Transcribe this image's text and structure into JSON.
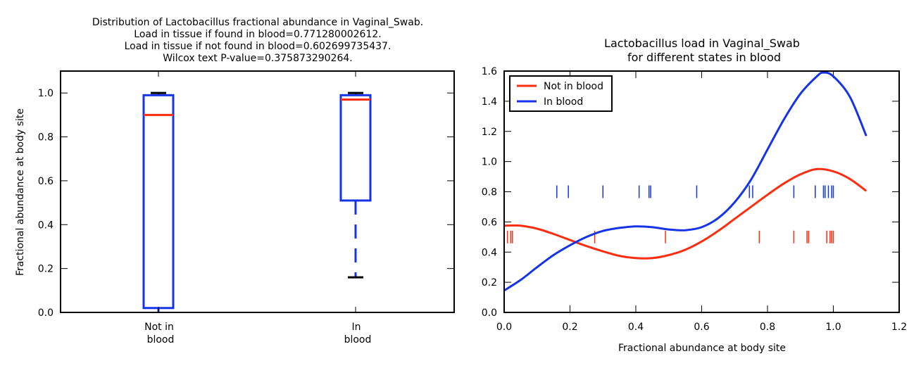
{
  "chart_data": [
    {
      "type": "box",
      "title_lines": [
        "Distribution of Lactobacillus fractional abundance in Vaginal_Swab.",
        "Load in tissue if found in blood=0.771280002612.",
        "Load in tissue if not found in blood=0.602699735437.",
        "Wilcox text P-value=0.375873290264."
      ],
      "ylabel": "Fractional abundance at body site",
      "ylim": [
        0,
        1.1
      ],
      "yticks": [
        {
          "v": 0,
          "label": "0.0"
        },
        {
          "v": 0.2,
          "label": "0.2"
        },
        {
          "v": 0.4,
          "label": "0.4"
        },
        {
          "v": 0.6,
          "label": "0.6"
        },
        {
          "v": 0.8,
          "label": "0.8"
        },
        {
          "v": 1.0,
          "label": "1.0"
        }
      ],
      "boxes": [
        {
          "label_lines": [
            "Not in",
            "blood"
          ],
          "whisker_low": 0.0,
          "q1": 0.02,
          "median": 0.9,
          "q3": 0.99,
          "whisker_high": 1.0,
          "cap_low": null,
          "cap_high": 1.0
        },
        {
          "label_lines": [
            "In",
            "blood"
          ],
          "whisker_low": 0.16,
          "q1": 0.51,
          "median": 0.97,
          "q3": 0.99,
          "whisker_high": 1.0,
          "cap_low": 0.16,
          "cap_high": 1.0
        }
      ],
      "colors": {
        "box": "#1533e8",
        "median": "#ff2d0f",
        "cap": "#000000"
      }
    },
    {
      "type": "line",
      "title_lines": [
        "Lactobacillus load in Vaginal_Swab",
        "for different states in blood"
      ],
      "xlabel": "Fractional abundance at body site",
      "xlim": [
        0,
        1.2
      ],
      "ylim": [
        0,
        1.6
      ],
      "xticks": [
        {
          "v": 0,
          "label": "0.0"
        },
        {
          "v": 0.2,
          "label": "0.2"
        },
        {
          "v": 0.4,
          "label": "0.4"
        },
        {
          "v": 0.6,
          "label": "0.6"
        },
        {
          "v": 0.8,
          "label": "0.8"
        },
        {
          "v": 1.0,
          "label": "1.0"
        },
        {
          "v": 1.2,
          "label": "1.2"
        }
      ],
      "yticks": [
        {
          "v": 0,
          "label": "0.0"
        },
        {
          "v": 0.2,
          "label": "0.2"
        },
        {
          "v": 0.4,
          "label": "0.4"
        },
        {
          "v": 0.6,
          "label": "0.6"
        },
        {
          "v": 0.8,
          "label": "0.8"
        },
        {
          "v": 1.0,
          "label": "1.0"
        },
        {
          "v": 1.2,
          "label": "1.2"
        },
        {
          "v": 1.4,
          "label": "1.4"
        },
        {
          "v": 1.6,
          "label": "1.6"
        }
      ],
      "legend": {
        "position": "top-left"
      },
      "series": [
        {
          "name": "Not in blood",
          "color": "#ff2d0f",
          "x": [
            0.0,
            0.05,
            0.1,
            0.15,
            0.2,
            0.25,
            0.3,
            0.35,
            0.4,
            0.45,
            0.5,
            0.55,
            0.6,
            0.65,
            0.7,
            0.75,
            0.8,
            0.85,
            0.9,
            0.95,
            1.0,
            1.05,
            1.1
          ],
          "y": [
            0.575,
            0.575,
            0.555,
            0.52,
            0.48,
            0.44,
            0.405,
            0.375,
            0.36,
            0.36,
            0.38,
            0.415,
            0.47,
            0.54,
            0.62,
            0.7,
            0.78,
            0.855,
            0.915,
            0.95,
            0.935,
            0.885,
            0.805
          ],
          "rug_y": 0.5,
          "rug": [
            0.01,
            0.02,
            0.025,
            0.275,
            0.49,
            0.775,
            0.88,
            0.92,
            0.925,
            0.98,
            0.99,
            0.995,
            1.0
          ]
        },
        {
          "name": "In blood",
          "color": "#1533e8",
          "x": [
            0.0,
            0.05,
            0.1,
            0.15,
            0.2,
            0.25,
            0.3,
            0.35,
            0.4,
            0.45,
            0.5,
            0.55,
            0.6,
            0.65,
            0.7,
            0.75,
            0.8,
            0.85,
            0.9,
            0.95,
            0.97,
            1.0,
            1.05,
            1.1
          ],
          "y": [
            0.145,
            0.215,
            0.3,
            0.38,
            0.445,
            0.5,
            0.54,
            0.56,
            0.57,
            0.565,
            0.55,
            0.545,
            0.565,
            0.625,
            0.73,
            0.88,
            1.08,
            1.28,
            1.45,
            1.565,
            1.59,
            1.565,
            1.43,
            1.17
          ],
          "rug_y": 0.8,
          "rug": [
            0.16,
            0.195,
            0.3,
            0.41,
            0.44,
            0.445,
            0.585,
            0.745,
            0.755,
            0.88,
            0.945,
            0.97,
            0.975,
            0.985,
            0.995,
            1.0
          ]
        }
      ]
    }
  ]
}
